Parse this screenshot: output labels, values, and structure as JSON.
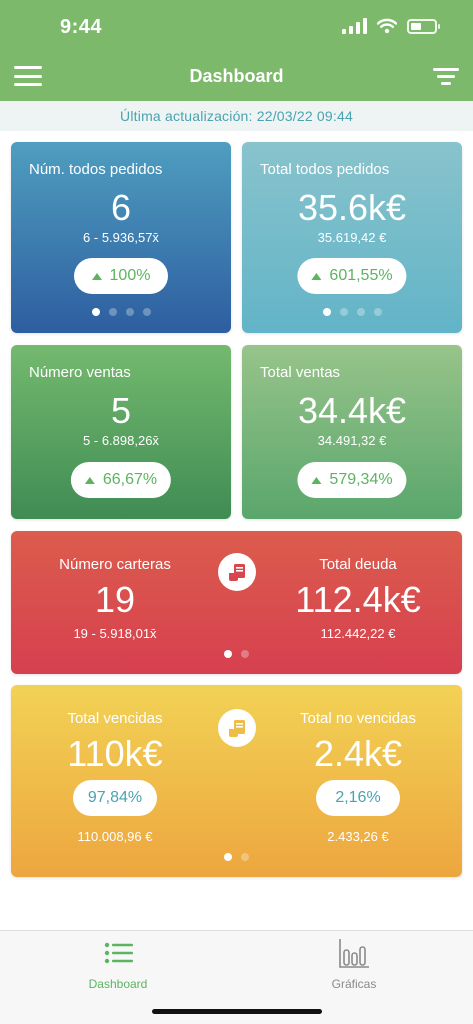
{
  "status_bar": {
    "time": "9:44"
  },
  "header": {
    "title": "Dashboard"
  },
  "update_text": "Última actualización: 22/03/22 09:44",
  "colors": {
    "header": "#7cb96b",
    "accent_green": "#5cb460",
    "accent_teal": "#4aa3b0"
  },
  "cards": {
    "pedidos_num": {
      "label": "Núm. todos pedidos",
      "value": "6",
      "sub": "6 - 5.936,57x̄",
      "change": "100%",
      "page": 1,
      "pages": 4
    },
    "pedidos_total": {
      "label": "Total todos pedidos",
      "value": "35.6k€",
      "sub": "35.619,42 €",
      "change": "601,55%",
      "page": 1,
      "pages": 4
    },
    "ventas_num": {
      "label": "Número ventas",
      "value": "5",
      "sub": "5 - 6.898,26x̄",
      "change": "66,67%"
    },
    "ventas_total": {
      "label": "Total ventas",
      "value": "34.4k€",
      "sub": "34.491,32 €",
      "change": "579,34%"
    },
    "carteras": {
      "left": {
        "label": "Número carteras",
        "value": "19",
        "sub": "19 - 5.918,01x̄"
      },
      "right": {
        "label": "Total deuda",
        "value": "112.4k€",
        "sub": "112.442,22 €"
      },
      "icon": "receipt-icon",
      "page": 1,
      "pages": 2
    },
    "vencidas": {
      "left": {
        "label": "Total vencidas",
        "value": "110k€",
        "percent": "97,84%",
        "sub": "110.008,96 €"
      },
      "right": {
        "label": "Total no vencidas",
        "value": "2.4k€",
        "percent": "2,16%",
        "sub": "2.433,26 €"
      },
      "icon": "receipt-icon",
      "page": 1,
      "pages": 2
    }
  },
  "tabbar": {
    "items": [
      {
        "label": "Dashboard",
        "icon": "list-icon",
        "active": true
      },
      {
        "label": "Gráficas",
        "icon": "bar-chart-icon",
        "active": false
      }
    ]
  }
}
